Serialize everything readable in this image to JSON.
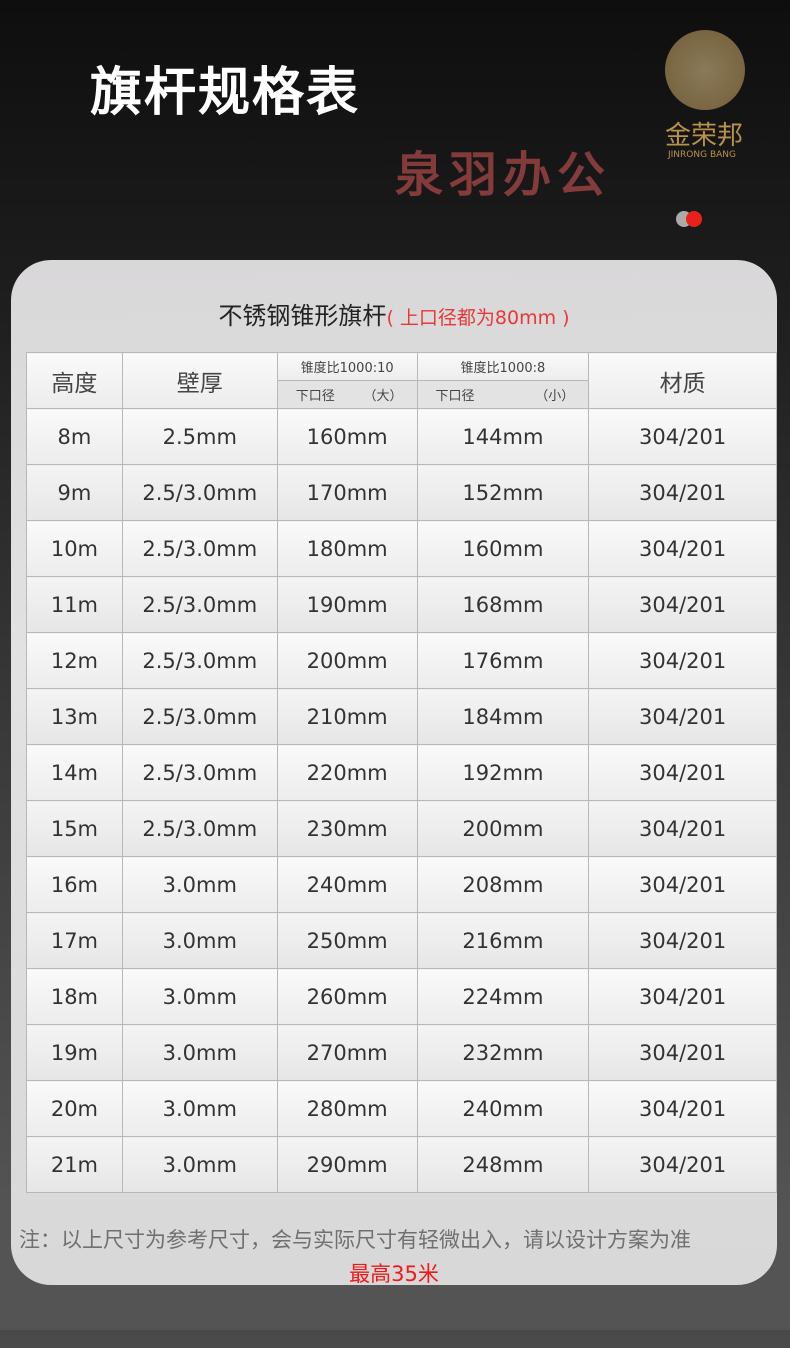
{
  "page": {
    "title": "旗杆规格表"
  },
  "card": {
    "title": "不锈钢锥形旗杆",
    "title_note": "( 上口径都为80mm )",
    "headers": {
      "height": "高度",
      "wall": "壁厚",
      "taper1": "锥度比1000:10",
      "taper2": "锥度比1000:8",
      "bottom1": "下口径",
      "bottom1_tag": "（大）",
      "bottom2": "下口径",
      "bottom2_tag": "（小）",
      "material": "材质"
    },
    "rows": [
      [
        "8m",
        "2.5mm",
        "160mm",
        "144mm",
        "304/201"
      ],
      [
        "9m",
        "2.5/3.0mm",
        "170mm",
        "152mm",
        "304/201"
      ],
      [
        "10m",
        "2.5/3.0mm",
        "180mm",
        "160mm",
        "304/201"
      ],
      [
        "11m",
        "2.5/3.0mm",
        "190mm",
        "168mm",
        "304/201"
      ],
      [
        "12m",
        "2.5/3.0mm",
        "200mm",
        "176mm",
        "304/201"
      ],
      [
        "13m",
        "2.5/3.0mm",
        "210mm",
        "184mm",
        "304/201"
      ],
      [
        "14m",
        "2.5/3.0mm",
        "220mm",
        "192mm",
        "304/201"
      ],
      [
        "15m",
        "2.5/3.0mm",
        "230mm",
        "200mm",
        "304/201"
      ],
      [
        "16m",
        "3.0mm",
        "240mm",
        "208mm",
        "304/201"
      ],
      [
        "17m",
        "3.0mm",
        "250mm",
        "216mm",
        "304/201"
      ],
      [
        "18m",
        "3.0mm",
        "260mm",
        "224mm",
        "304/201"
      ],
      [
        "19m",
        "3.0mm",
        "270mm",
        "232mm",
        "304/201"
      ],
      [
        "20m",
        "3.0mm",
        "280mm",
        "240mm",
        "304/201"
      ],
      [
        "21m",
        "3.0mm",
        "290mm",
        "248mm",
        "304/201"
      ]
    ],
    "note": "注：以上尺寸为参考尺寸，会与实际尺寸有轻微出入，请以设计方案为准",
    "max_height": "最高35米"
  },
  "watermark": {
    "text": "泉羽办公",
    "seal_text": "金荣邦",
    "seal_sub": "JINRONG BANG"
  },
  "colors": {
    "accent_red": "#e83838",
    "dot_active": "#e8221b",
    "dot_inactive": "#aaaaaa"
  }
}
